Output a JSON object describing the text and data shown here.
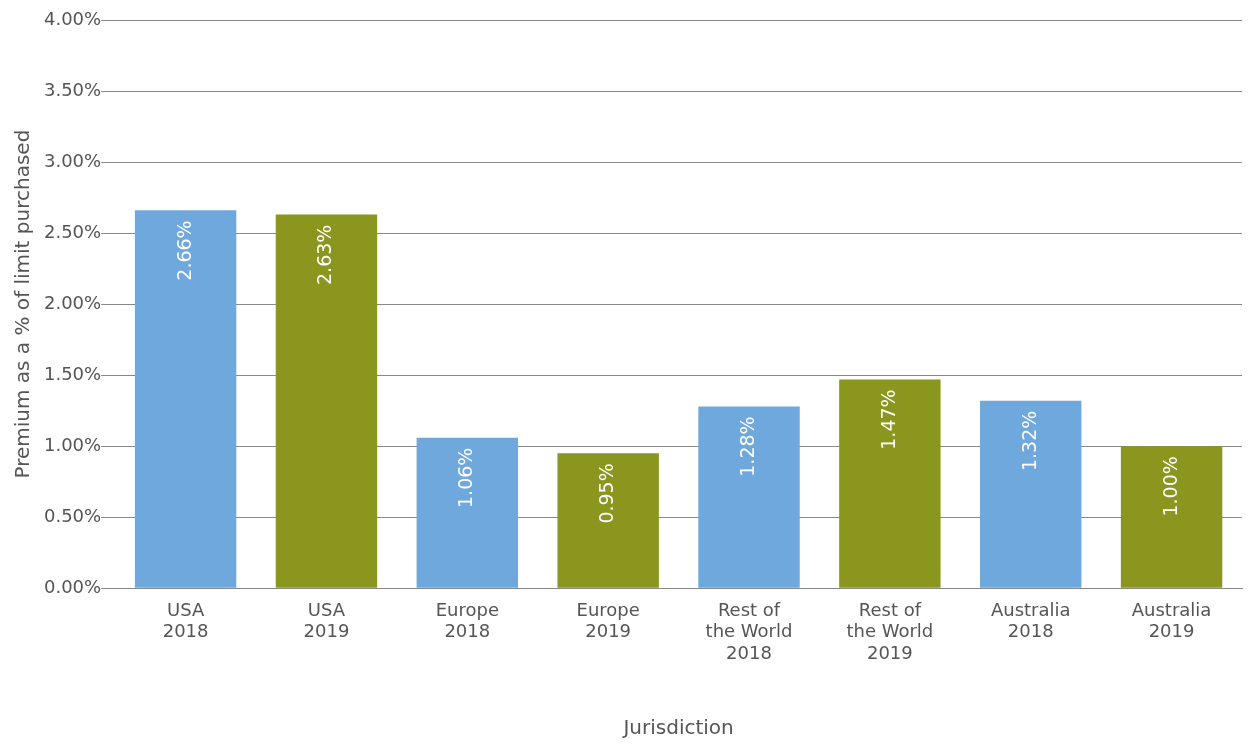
{
  "chart_data": {
    "type": "bar",
    "xlabel": "Jurisdiction",
    "ylabel": "Premium as a % of limit purchased",
    "categories": [
      "USA 2018",
      "USA 2019",
      "Europe 2018",
      "Europe 2019",
      "Rest of the World 2018",
      "Rest of the World 2019",
      "Australia 2018",
      "Australia 2019"
    ],
    "values": [
      2.66,
      2.63,
      1.06,
      0.95,
      1.28,
      1.47,
      1.32,
      1.0
    ],
    "colors": [
      "#6fa8dc",
      "#8a961e",
      "#6fa8dc",
      "#8a961e",
      "#6fa8dc",
      "#8a961e",
      "#6fa8dc",
      "#8a961e"
    ],
    "value_labels": [
      "2.66%",
      "2.63%",
      "1.06%",
      "0.95%",
      "1.28%",
      "1.47%",
      "1.32%",
      "1.00%"
    ],
    "ylim": [
      0,
      4
    ],
    "yticks": [
      {
        "value": 0,
        "label": "0.00%"
      },
      {
        "value": 0.5,
        "label": "0.50%"
      },
      {
        "value": 1,
        "label": "1.00%"
      },
      {
        "value": 1.5,
        "label": "1.50%"
      },
      {
        "value": 2,
        "label": "2.00%"
      },
      {
        "value": 2.5,
        "label": "2.50%"
      },
      {
        "value": 3,
        "label": "3.00%"
      },
      {
        "value": 3.5,
        "label": "3.50%"
      },
      {
        "value": 4,
        "label": "4.00%"
      }
    ],
    "grid": "y",
    "legend": false
  }
}
